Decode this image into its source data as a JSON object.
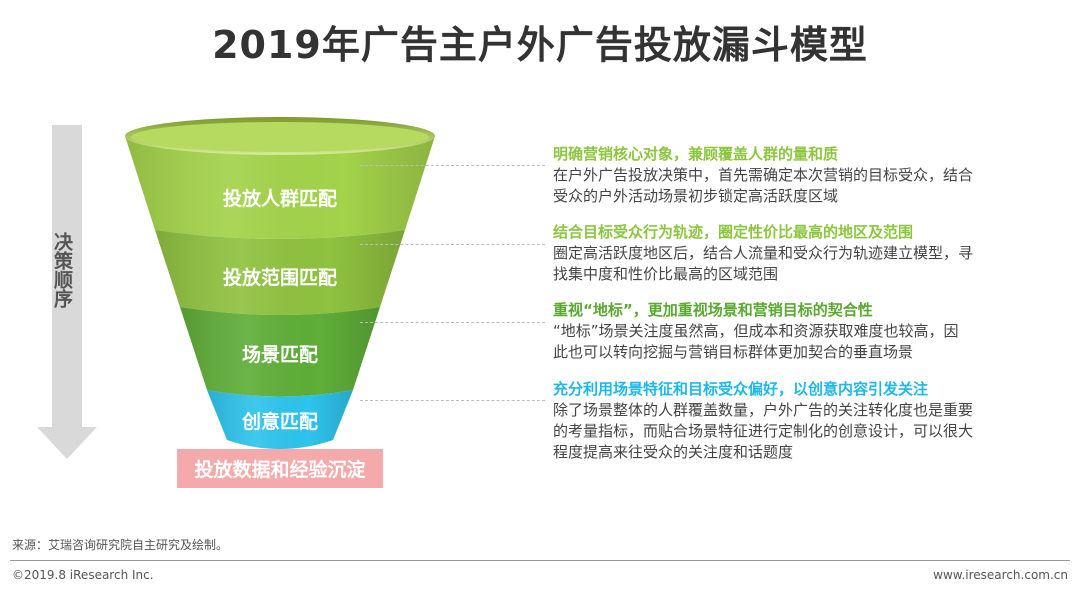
{
  "title": "2019年广告主户外广告投放漏斗模型",
  "funnel": {
    "stages": [
      {
        "label": "投放人群匹配",
        "color": "#a3d34a"
      },
      {
        "label": "投放范围匹配",
        "color": "#8fc23f"
      },
      {
        "label": "场景匹配",
        "color": "#5fae38"
      },
      {
        "label": "创意匹配",
        "color": "#2ec4ec"
      }
    ],
    "rim_color": "#c5e27a",
    "base": {
      "label": "投放数据和经验沉淀",
      "color": "#f4aaaa"
    }
  },
  "sequence_label": "决策顺序",
  "points": [
    {
      "heading": "明确营销核心对象，兼顾覆盖人群的量和质",
      "color": "#8cc63f",
      "lines": [
        "在户外广告投放决策中，首先需确定本次营销的目标受众，结合",
        "受众的户外活动场景初步锁定高活跃度区域"
      ]
    },
    {
      "heading": "结合目标受众行为轨迹，圈定性价比最高的地区及范围",
      "color": "#8cc63f",
      "lines": [
        "圈定高活跃度地区后，结合人流量和受众行为轨迹建立模型，寻",
        "找集中度和性价比最高的区域范围"
      ]
    },
    {
      "heading": "重视“地标”，更加重视场景和营销目标的契合性",
      "color": "#5aa832",
      "lines": [
        "“地标”场景关注度虽然高，但成本和资源获取难度也较高，因",
        "此也可以转向挖掘与营销目标群体更加契合的垂直场景"
      ]
    },
    {
      "heading": "充分利用场景特征和目标受众偏好，以创意内容引发关注",
      "color": "#1fb8e8",
      "lines": [
        "除了场景整体的人群覆盖数量，户外广告的关注转化度也是重要",
        "的考量指标，而贴合场景特征进行定制化的创意设计，可以很大",
        "程度提高来往受众的关注度和话题度"
      ]
    }
  ],
  "source": "来源：艾瑞咨询研究院自主研究及绘制。",
  "copyright": "©2019.8 iResearch Inc.",
  "site": "www.iresearch.com.cn"
}
